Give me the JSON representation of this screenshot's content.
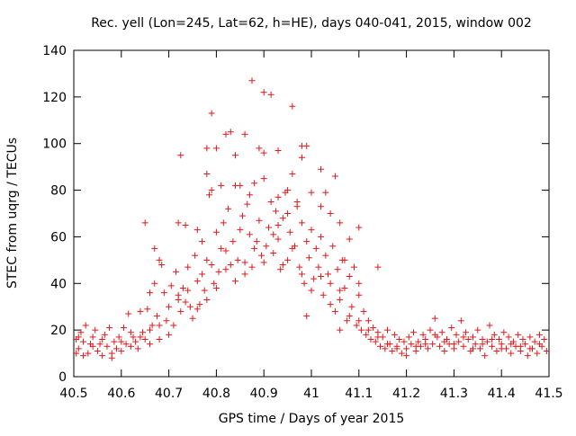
{
  "chart_data": {
    "type": "scatter",
    "title": "Rec. yell (Lon=245, Lat=62, h=HE), days 040-041, 2015, window 002",
    "xlabel": "GPS time / Days of year 2015",
    "ylabel": "STEC from uqrg / TECUs",
    "xlim": [
      40.5,
      41.5
    ],
    "ylim": [
      0,
      140
    ],
    "x_ticks": [
      "40.5",
      "40.6",
      "40.7",
      "40.8",
      "40.9",
      "41",
      "41.1",
      "41.2",
      "41.3",
      "41.4",
      "41.5"
    ],
    "y_ticks": [
      "0",
      "20",
      "40",
      "60",
      "80",
      "100",
      "120",
      "140"
    ],
    "grid": false,
    "legend": "none",
    "marker": "plus",
    "series": [
      {
        "color": "#e0181a",
        "points": [
          [
            40.505,
            10
          ],
          [
            40.505,
            16
          ],
          [
            40.51,
            12
          ],
          [
            40.515,
            19
          ],
          [
            40.52,
            15
          ],
          [
            40.525,
            22
          ],
          [
            40.53,
            10
          ],
          [
            40.535,
            14
          ],
          [
            40.54,
            17
          ],
          [
            40.545,
            20
          ],
          [
            40.55,
            11
          ],
          [
            40.555,
            14
          ],
          [
            40.56,
            9
          ],
          [
            40.565,
            18
          ],
          [
            40.57,
            13
          ],
          [
            40.575,
            21
          ],
          [
            40.58,
            10
          ],
          [
            40.585,
            15
          ],
          [
            40.59,
            12
          ],
          [
            40.595,
            17
          ],
          [
            40.6,
            11
          ],
          [
            40.605,
            21
          ],
          [
            40.61,
            14
          ],
          [
            40.615,
            27
          ],
          [
            40.62,
            13
          ],
          [
            40.625,
            17
          ],
          [
            40.63,
            15
          ],
          [
            40.635,
            12
          ],
          [
            40.64,
            28
          ],
          [
            40.645,
            19
          ],
          [
            40.65,
            16
          ],
          [
            40.655,
            29
          ],
          [
            40.66,
            14
          ],
          [
            40.665,
            22
          ],
          [
            40.67,
            40
          ],
          [
            40.675,
            26
          ],
          [
            40.68,
            16
          ],
          [
            40.685,
            48
          ],
          [
            40.69,
            36
          ],
          [
            40.695,
            24
          ],
          [
            40.7,
            30
          ],
          [
            40.705,
            39
          ],
          [
            40.71,
            22
          ],
          [
            40.715,
            45
          ],
          [
            40.72,
            35
          ],
          [
            40.725,
            28
          ],
          [
            40.73,
            38
          ],
          [
            40.735,
            32
          ],
          [
            40.74,
            47
          ],
          [
            40.745,
            30
          ],
          [
            40.75,
            25
          ],
          [
            40.755,
            52
          ],
          [
            40.76,
            41
          ],
          [
            40.765,
            31
          ],
          [
            40.77,
            44
          ],
          [
            40.775,
            37
          ],
          [
            40.78,
            50
          ],
          [
            40.785,
            78
          ],
          [
            40.79,
            48
          ],
          [
            40.795,
            40
          ],
          [
            40.8,
            62
          ],
          [
            40.805,
            45
          ],
          [
            40.81,
            55
          ],
          [
            40.815,
            66
          ],
          [
            40.82,
            46
          ],
          [
            40.825,
            72
          ],
          [
            40.83,
            48
          ],
          [
            40.835,
            58
          ],
          [
            40.84,
            82
          ],
          [
            40.845,
            50
          ],
          [
            40.85,
            63
          ],
          [
            40.855,
            69
          ],
          [
            40.86,
            44
          ],
          [
            40.865,
            74
          ],
          [
            40.87,
            61
          ],
          [
            40.875,
            47
          ],
          [
            40.88,
            83
          ],
          [
            40.885,
            58
          ],
          [
            40.89,
            67
          ],
          [
            40.895,
            52
          ],
          [
            40.9,
            96
          ],
          [
            40.905,
            56
          ],
          [
            40.91,
            64
          ],
          [
            40.915,
            75
          ],
          [
            40.92,
            53
          ],
          [
            40.925,
            71
          ],
          [
            40.93,
            59
          ],
          [
            40.935,
            46
          ],
          [
            40.94,
            68
          ],
          [
            40.945,
            79
          ],
          [
            40.95,
            50
          ],
          [
            40.955,
            62
          ],
          [
            40.96,
            87
          ],
          [
            40.965,
            56
          ],
          [
            40.97,
            73
          ],
          [
            40.975,
            47
          ],
          [
            40.98,
            66
          ],
          [
            40.985,
            40
          ],
          [
            40.99,
            58
          ],
          [
            40.995,
            51
          ],
          [
            41.0,
            63
          ],
          [
            41.005,
            42
          ],
          [
            41.01,
            55
          ],
          [
            41.015,
            47
          ],
          [
            41.02,
            60
          ],
          [
            41.025,
            35
          ],
          [
            41.03,
            52
          ],
          [
            41.035,
            44
          ],
          [
            41.04,
            40
          ],
          [
            41.045,
            56
          ],
          [
            41.05,
            28
          ],
          [
            41.055,
            46
          ],
          [
            41.06,
            33
          ],
          [
            41.065,
            50
          ],
          [
            41.07,
            38
          ],
          [
            41.075,
            24
          ],
          [
            41.08,
            43
          ],
          [
            41.085,
            30
          ],
          [
            41.09,
            47
          ],
          [
            41.095,
            22
          ],
          [
            41.1,
            35
          ],
          [
            41.105,
            20
          ],
          [
            41.11,
            28
          ],
          [
            41.115,
            18
          ],
          [
            41.12,
            24
          ],
          [
            41.125,
            16
          ],
          [
            41.13,
            21
          ],
          [
            41.135,
            15
          ],
          [
            41.14,
            19
          ],
          [
            41.145,
            13
          ],
          [
            41.15,
            17
          ],
          [
            41.155,
            12
          ],
          [
            41.16,
            20
          ],
          [
            41.165,
            14
          ],
          [
            41.17,
            11
          ],
          [
            41.175,
            18
          ],
          [
            41.18,
            13
          ],
          [
            41.185,
            16
          ],
          [
            41.19,
            10
          ],
          [
            41.195,
            15
          ],
          [
            41.2,
            12
          ],
          [
            41.205,
            17
          ],
          [
            41.21,
            14
          ],
          [
            41.215,
            19
          ],
          [
            41.22,
            11
          ],
          [
            41.225,
            15
          ],
          [
            41.23,
            13
          ],
          [
            41.235,
            18
          ],
          [
            41.24,
            16
          ],
          [
            41.245,
            12
          ],
          [
            41.25,
            20
          ],
          [
            41.255,
            14
          ],
          [
            41.26,
            25
          ],
          [
            41.265,
            17
          ],
          [
            41.27,
            13
          ],
          [
            41.275,
            19
          ],
          [
            41.28,
            11
          ],
          [
            41.285,
            16
          ],
          [
            41.29,
            14
          ],
          [
            41.295,
            21
          ],
          [
            41.3,
            12
          ],
          [
            41.305,
            18
          ],
          [
            41.31,
            15
          ],
          [
            41.315,
            24
          ],
          [
            41.32,
            13
          ],
          [
            41.325,
            19
          ],
          [
            41.33,
            16
          ],
          [
            41.335,
            11
          ],
          [
            41.34,
            17
          ],
          [
            41.345,
            14
          ],
          [
            41.35,
            20
          ],
          [
            41.355,
            12
          ],
          [
            41.36,
            16
          ],
          [
            41.365,
            9
          ],
          [
            41.37,
            15
          ],
          [
            41.375,
            22
          ],
          [
            41.38,
            13
          ],
          [
            41.385,
            18
          ],
          [
            41.39,
            11
          ],
          [
            41.395,
            16
          ],
          [
            41.4,
            14
          ],
          [
            41.405,
            19
          ],
          [
            41.41,
            12
          ],
          [
            41.415,
            17
          ],
          [
            41.42,
            10
          ],
          [
            41.425,
            15
          ],
          [
            41.43,
            13
          ],
          [
            41.435,
            18
          ],
          [
            41.44,
            11
          ],
          [
            41.445,
            16
          ],
          [
            41.45,
            14
          ],
          [
            41.455,
            9
          ],
          [
            41.46,
            17
          ],
          [
            41.465,
            12
          ],
          [
            41.47,
            15
          ],
          [
            41.475,
            10
          ],
          [
            41.48,
            18
          ],
          [
            41.485,
            13
          ],
          [
            41.49,
            16
          ],
          [
            41.495,
            11
          ],
          [
            40.51,
            17
          ],
          [
            40.52,
            9
          ],
          [
            40.54,
            13
          ],
          [
            40.56,
            16
          ],
          [
            40.58,
            8
          ],
          [
            40.6,
            15
          ],
          [
            40.62,
            19
          ],
          [
            40.64,
            17
          ],
          [
            40.66,
            20
          ],
          [
            40.68,
            22
          ],
          [
            40.7,
            18
          ],
          [
            40.72,
            33
          ],
          [
            40.74,
            37
          ],
          [
            40.76,
            29
          ],
          [
            40.78,
            33
          ],
          [
            40.8,
            38
          ],
          [
            40.82,
            54
          ],
          [
            40.84,
            41
          ],
          [
            40.86,
            49
          ],
          [
            40.88,
            55
          ],
          [
            40.9,
            49
          ],
          [
            40.92,
            61
          ],
          [
            40.94,
            48
          ],
          [
            40.96,
            55
          ],
          [
            40.98,
            44
          ],
          [
            41.0,
            37
          ],
          [
            41.02,
            43
          ],
          [
            41.04,
            31
          ],
          [
            41.06,
            37
          ],
          [
            41.08,
            26
          ],
          [
            41.1,
            24
          ],
          [
            41.12,
            20
          ],
          [
            41.14,
            17
          ],
          [
            41.16,
            14
          ],
          [
            41.18,
            12
          ],
          [
            41.2,
            9
          ],
          [
            41.22,
            13
          ],
          [
            41.24,
            14
          ],
          [
            41.26,
            18
          ],
          [
            41.28,
            15
          ],
          [
            41.3,
            14
          ],
          [
            41.32,
            17
          ],
          [
            41.34,
            12
          ],
          [
            41.36,
            14
          ],
          [
            41.38,
            16
          ],
          [
            41.4,
            12
          ],
          [
            41.42,
            14
          ],
          [
            41.44,
            13
          ],
          [
            41.46,
            12
          ],
          [
            41.48,
            14
          ],
          [
            40.65,
            66
          ],
          [
            40.67,
            55
          ],
          [
            40.68,
            50
          ],
          [
            40.72,
            66
          ],
          [
            40.725,
            95
          ],
          [
            40.735,
            65
          ],
          [
            40.76,
            63
          ],
          [
            40.78,
            87
          ],
          [
            40.78,
            98
          ],
          [
            40.79,
            113
          ],
          [
            40.8,
            98
          ],
          [
            40.82,
            104
          ],
          [
            40.83,
            105
          ],
          [
            40.84,
            95
          ],
          [
            40.86,
            104
          ],
          [
            40.875,
            127
          ],
          [
            40.89,
            98
          ],
          [
            40.9,
            122
          ],
          [
            40.915,
            121
          ],
          [
            40.93,
            97
          ],
          [
            40.96,
            116
          ],
          [
            40.98,
            99
          ],
          [
            40.98,
            94
          ],
          [
            40.99,
            99
          ],
          [
            41.02,
            89
          ],
          [
            41.03,
            79
          ],
          [
            41.05,
            86
          ],
          [
            40.79,
            80
          ],
          [
            40.81,
            82
          ],
          [
            40.85,
            82
          ],
          [
            40.87,
            78
          ],
          [
            40.9,
            85
          ],
          [
            40.93,
            77
          ],
          [
            40.95,
            80
          ],
          [
            40.97,
            75
          ],
          [
            41.0,
            79
          ],
          [
            41.02,
            73
          ],
          [
            41.04,
            70
          ],
          [
            41.06,
            66
          ],
          [
            41.08,
            59
          ],
          [
            41.1,
            64
          ],
          [
            41.14,
            47
          ],
          [
            40.99,
            26
          ],
          [
            41.06,
            20
          ],
          [
            41.1,
            40
          ],
          [
            40.77,
            58
          ],
          [
            40.93,
            65
          ],
          [
            40.95,
            70
          ],
          [
            41.07,
            50
          ],
          [
            40.66,
            36
          ]
        ]
      }
    ]
  }
}
